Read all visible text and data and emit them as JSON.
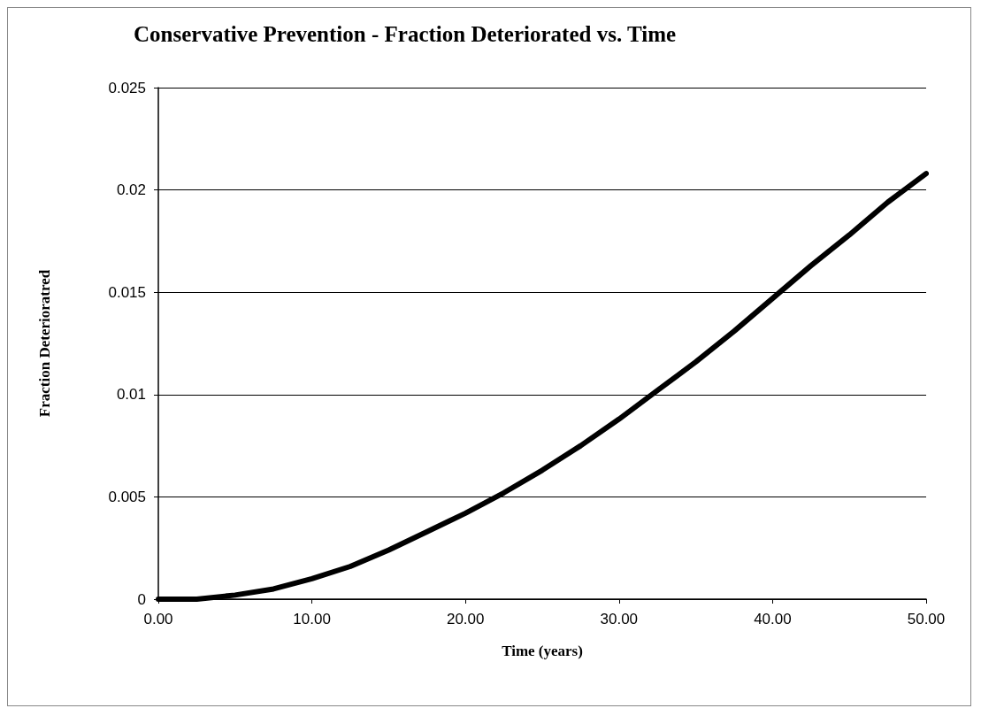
{
  "chart_data": {
    "type": "line",
    "title": "Conservative Prevention - Fraction Deteriorated vs. Time",
    "xlabel": "Time (years)",
    "ylabel": "Fraction Deterioratred",
    "x": [
      0,
      2.5,
      5,
      7.5,
      10,
      12.5,
      15,
      17.5,
      20,
      22.5,
      25,
      27.5,
      30,
      32.5,
      35,
      37.5,
      40,
      42.5,
      45,
      47.5,
      50
    ],
    "series": [
      {
        "color": "#000000",
        "values": [
          0,
          0,
          0.0002,
          0.0005,
          0.001,
          0.0016,
          0.0024,
          0.0033,
          0.0042,
          0.0052,
          0.0063,
          0.0075,
          0.0088,
          0.0102,
          0.0116,
          0.0131,
          0.0147,
          0.0163,
          0.0178,
          0.0194,
          0.0208
        ]
      }
    ],
    "xlim": [
      0,
      50
    ],
    "xticks": [
      {
        "value": 0,
        "label": "0.00"
      },
      {
        "value": 10,
        "label": "10.00"
      },
      {
        "value": 20,
        "label": "20.00"
      },
      {
        "value": 30,
        "label": "30.00"
      },
      {
        "value": 40,
        "label": "40.00"
      },
      {
        "value": 50,
        "label": "50.00"
      }
    ],
    "ylim": [
      0,
      0.025
    ],
    "yticks": [
      0,
      0.005,
      0.01,
      0.015,
      0.02,
      0.025
    ],
    "grid": "y",
    "marker": "none",
    "line_style": "solid"
  }
}
